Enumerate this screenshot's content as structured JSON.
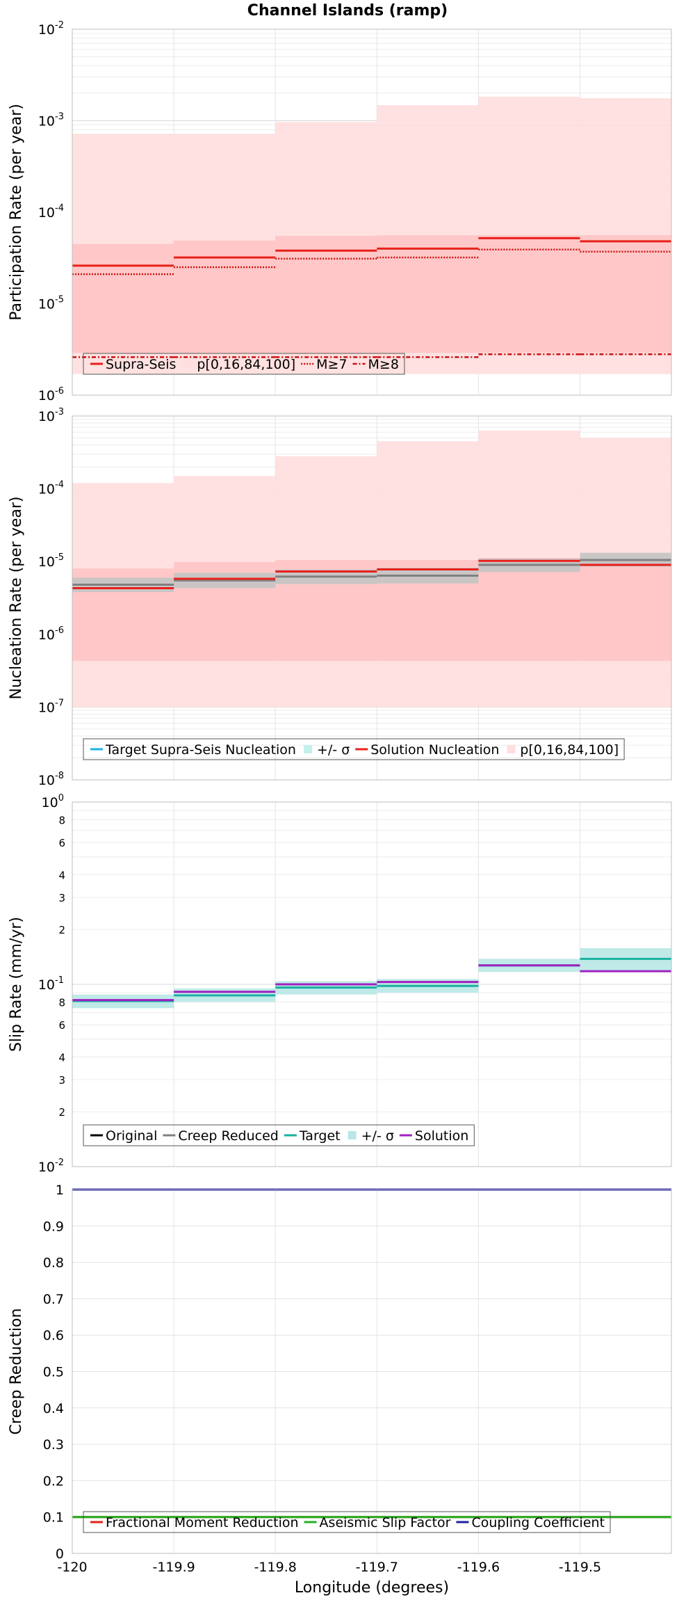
{
  "title": "Channel Islands (ramp)",
  "chart_data": [
    {
      "type": "line",
      "ylabel": "Participation Rate (per year)",
      "yscale": "log",
      "ylim": [
        1e-06,
        0.01
      ],
      "xlim": [
        -120,
        -119.41
      ],
      "x_edges": [
        -120,
        -119.9,
        -119.8,
        -119.7,
        -119.6,
        -119.5,
        -119.41
      ],
      "legend": [
        "Supra-Seis",
        "p[0,16,84,100]",
        "M≥7",
        "M≥8"
      ],
      "bands": [
        {
          "name": "p[0,16,84,100] outer",
          "color": "#ffdede",
          "lower": [
            1.7e-06,
            1.7e-06,
            1.7e-06,
            1.7e-06,
            1.7e-06,
            1.7e-06
          ],
          "upper": [
            0.00072,
            0.00072,
            0.00097,
            0.00148,
            0.00183,
            0.00176
          ]
        },
        {
          "name": "p[0,16,84,100] inner",
          "color": "#ffc4c4",
          "lower": [
            2.9e-06,
            2.9e-06,
            2.9e-06,
            2.9e-06,
            2.9e-06,
            2.9e-06
          ],
          "upper": [
            4.5e-05,
            4.9e-05,
            5.5e-05,
            5.6e-05,
            5.6e-05,
            5.6e-05
          ]
        }
      ],
      "series": [
        {
          "name": "Supra-Seis",
          "style": "solid",
          "color": "#e8201a",
          "values": [
            2.6e-05,
            3.2e-05,
            3.8e-05,
            4e-05,
            5.2e-05,
            4.8e-05
          ]
        },
        {
          "name": "M≥7",
          "style": "dotted",
          "color": "#cc1010",
          "values": [
            2.1e-05,
            2.5e-05,
            3.1e-05,
            3.2e-05,
            3.9e-05,
            3.7e-05
          ]
        },
        {
          "name": "M≥8",
          "style": "dashdot",
          "color": "#cc1010",
          "values": [
            2.6e-06,
            2.6e-06,
            2.6e-06,
            2.6e-06,
            2.8e-06,
            2.8e-06
          ]
        }
      ]
    },
    {
      "type": "line",
      "ylabel": "Nucleation Rate (per year)",
      "yscale": "log",
      "ylim": [
        1e-08,
        0.001
      ],
      "xlim": [
        -120,
        -119.41
      ],
      "x_edges": [
        -120,
        -119.9,
        -119.8,
        -119.7,
        -119.6,
        -119.5,
        -119.41
      ],
      "legend": [
        "Target Supra-Seis Nucleation",
        "+/- σ",
        "Solution Nucleation",
        "p[0,16,84,100]"
      ],
      "bands": [
        {
          "name": "p[0,16,84,100] outer",
          "color": "#ffdede",
          "lower": [
            1e-07,
            1e-07,
            1e-07,
            1e-07,
            1e-07,
            1e-07
          ],
          "upper": [
            0.00012,
            0.00015,
            0.00028,
            0.00045,
            0.00063,
            0.0005
          ]
        },
        {
          "name": "p[0,16,84,100] inner",
          "color": "#ffc4c4",
          "lower": [
            4.3e-07,
            4.3e-07,
            4.3e-07,
            4.3e-07,
            4.3e-07,
            4.3e-07
          ],
          "upper": [
            8e-06,
            9.8e-06,
            1.05e-05,
            1.05e-05,
            1.12e-05,
            1.1e-05
          ]
        },
        {
          "name": "+/- σ",
          "color": "#c4c4c4",
          "lower": [
            3.8e-06,
            4.3e-06,
            4.9e-06,
            5e-06,
            7.2e-06,
            8.5e-06
          ],
          "upper": [
            6e-06,
            7e-06,
            7.8e-06,
            8.2e-06,
            1.1e-05,
            1.32e-05
          ]
        }
      ],
      "series": [
        {
          "name": "Target Supra-Seis Nucleation",
          "style": "solid",
          "color": "#808080",
          "values": [
            4.8e-06,
            5.5e-06,
            6.2e-06,
            6.4e-06,
            9e-06,
            1.05e-05
          ]
        },
        {
          "name": "Solution Nucleation",
          "style": "solid",
          "color": "#e8201a",
          "values": [
            4.3e-06,
            5.8e-06,
            7.3e-06,
            7.8e-06,
            1.02e-05,
            9e-06
          ]
        }
      ]
    },
    {
      "type": "line",
      "ylabel": "Slip Rate (mm/yr)",
      "yscale": "log",
      "ylim": [
        0.01,
        1.0
      ],
      "xlim": [
        -120,
        -119.41
      ],
      "x_edges": [
        -120,
        -119.9,
        -119.8,
        -119.7,
        -119.6,
        -119.5,
        -119.41
      ],
      "legend": [
        "Original",
        "Creep Reduced",
        "Target",
        "+/- σ",
        "Solution"
      ],
      "bands": [
        {
          "name": "+/- σ",
          "color": "#b8e8e6",
          "lower": [
            0.074,
            0.08,
            0.088,
            0.09,
            0.117,
            0.119
          ],
          "upper": [
            0.088,
            0.095,
            0.104,
            0.107,
            0.138,
            0.158
          ]
        }
      ],
      "series": [
        {
          "name": "Target",
          "style": "solid",
          "color": "#1ab0a0",
          "values": [
            0.081,
            0.087,
            0.096,
            0.098,
            0.127,
            0.138
          ]
        },
        {
          "name": "Solution",
          "style": "solid",
          "color": "#a020c0",
          "values": [
            0.082,
            0.091,
            0.1,
            0.103,
            0.127,
            0.118
          ]
        }
      ]
    },
    {
      "type": "line",
      "ylabel": "Creep Reduction",
      "xlabel": "Longitude (degrees)",
      "ylim": [
        0,
        1
      ],
      "xlim": [
        -120,
        -119.41
      ],
      "x_edges": [
        -120,
        -119.9,
        -119.8,
        -119.7,
        -119.6,
        -119.5,
        -119.41
      ],
      "legend": [
        "Fractional Moment Reduction",
        "Aseismic Slip Factor",
        "Coupling Coefficient"
      ],
      "series": [
        {
          "name": "Fractional Moment Reduction",
          "style": "solid",
          "color": "#e8201a",
          "values": [
            0.1,
            0.1,
            0.1,
            0.1,
            0.1,
            0.1
          ]
        },
        {
          "name": "Aseismic Slip Factor",
          "style": "solid",
          "color": "#22b022",
          "values": [
            0.1,
            0.1,
            0.1,
            0.1,
            0.1,
            0.1
          ]
        },
        {
          "name": "Coupling Coefficient",
          "style": "solid",
          "color": "#2020a0",
          "values": [
            1,
            1,
            1,
            1,
            1,
            1
          ]
        }
      ]
    }
  ],
  "legend_colors": {
    "Supra-Seis": "#e8201a",
    "p[0,16,84,100]": "#ffdede",
    "M≥7": "#cc1010",
    "M≥8": "#cc1010",
    "Target Supra-Seis Nucleation": "#1ab0e8",
    "+/- σ (nucleation)": "#c4f0ee",
    "Solution Nucleation": "#e8201a",
    "Original": "#000000",
    "Creep Reduced": "#808080",
    "Target": "#1ab0a0",
    "+/- σ (slip)": "#b8e8e6",
    "Solution": "#a020c0",
    "Fractional Moment Reduction": "#e8201a",
    "Aseismic Slip Factor": "#22b022",
    "Coupling Coefficient": "#2020a0"
  },
  "x_tick_labels": [
    "-120",
    "-119.9",
    "-119.8",
    "-119.7",
    "-119.6",
    "-119.5"
  ],
  "x_tick_values": [
    -120,
    -119.9,
    -119.8,
    -119.7,
    -119.6,
    -119.5
  ]
}
